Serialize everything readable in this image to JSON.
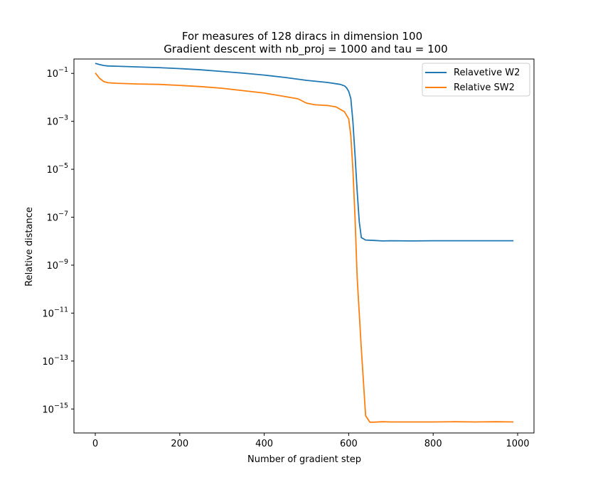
{
  "chart_data": {
    "type": "line",
    "title_line1": "For measures of 128 diracs in dimension 100",
    "title_line2": "Gradient descent with nb_proj = 1000 and tau = 100",
    "xlabel": "Number of gradient step",
    "ylabel": "Relative distance",
    "xlim": [
      0,
      990
    ],
    "ylim_log10": [
      -16.0,
      -0.4
    ],
    "yscale": "log",
    "grid": false,
    "legend_position": "top-right",
    "x_ticks": [
      0,
      200,
      400,
      600,
      800,
      1000
    ],
    "x_tick_labels": [
      "0",
      "200",
      "400",
      "600",
      "800",
      "1000"
    ],
    "y_ticks_log10": [
      -15,
      -13,
      -11,
      -9,
      -7,
      -5,
      -3,
      -1
    ],
    "y_tick_labels": [
      {
        "base": "10",
        "exp": "−15"
      },
      {
        "base": "10",
        "exp": "−13"
      },
      {
        "base": "10",
        "exp": "−11"
      },
      {
        "base": "10",
        "exp": "−9"
      },
      {
        "base": "10",
        "exp": "−7"
      },
      {
        "base": "10",
        "exp": "−5"
      },
      {
        "base": "10",
        "exp": "−3"
      },
      {
        "base": "10",
        "exp": "−1"
      }
    ],
    "series": [
      {
        "name": "Relavetive W2",
        "color": "#1f77b4",
        "x": [
          0,
          10,
          20,
          30,
          50,
          100,
          150,
          200,
          250,
          300,
          350,
          400,
          450,
          500,
          550,
          580,
          590,
          595,
          600,
          605,
          610,
          615,
          620,
          625,
          630,
          640,
          660,
          680,
          700,
          750,
          800,
          850,
          900,
          950,
          990
        ],
        "log10_y": [
          -0.58,
          -0.63,
          -0.67,
          -0.69,
          -0.7,
          -0.73,
          -0.76,
          -0.8,
          -0.85,
          -0.92,
          -0.99,
          -1.07,
          -1.17,
          -1.29,
          -1.38,
          -1.46,
          -1.52,
          -1.6,
          -1.75,
          -2.05,
          -3.0,
          -4.4,
          -5.9,
          -7.2,
          -7.85,
          -7.95,
          -7.97,
          -7.99,
          -7.98,
          -7.99,
          -7.98,
          -7.98,
          -7.98,
          -7.98,
          -7.98
        ]
      },
      {
        "name": "Relative SW2",
        "color": "#ff7f0e",
        "x": [
          0,
          10,
          20,
          30,
          50,
          100,
          150,
          200,
          250,
          300,
          350,
          400,
          450,
          480,
          500,
          520,
          550,
          570,
          590,
          600,
          605,
          610,
          615,
          620,
          630,
          640,
          650,
          660,
          680,
          700,
          750,
          800,
          850,
          900,
          950,
          990
        ],
        "log10_y": [
          -0.98,
          -1.2,
          -1.34,
          -1.39,
          -1.41,
          -1.44,
          -1.46,
          -1.5,
          -1.55,
          -1.62,
          -1.72,
          -1.82,
          -1.97,
          -2.06,
          -2.24,
          -2.31,
          -2.34,
          -2.4,
          -2.6,
          -2.9,
          -3.6,
          -5.0,
          -7.0,
          -9.5,
          -12.5,
          -15.28,
          -15.55,
          -15.55,
          -15.53,
          -15.54,
          -15.54,
          -15.54,
          -15.53,
          -15.54,
          -15.53,
          -15.54
        ]
      }
    ]
  }
}
